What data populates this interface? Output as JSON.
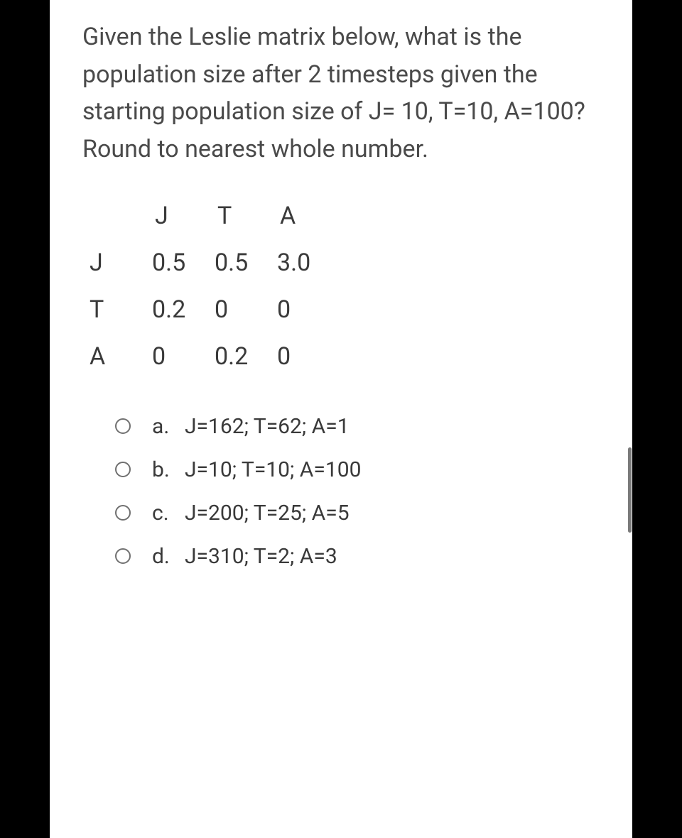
{
  "question": {
    "text": "Given the Leslie matrix below, what is the population size after 2 timesteps given the starting population size of J= 10, T=10, A=100? Round to nearest whole number."
  },
  "matrix": {
    "col_labels": [
      "J",
      "T",
      "A"
    ],
    "rows": [
      {
        "label": "J",
        "cells": [
          "0.5",
          "0.5",
          "3.0"
        ]
      },
      {
        "label": "T",
        "cells": [
          "0.2",
          "0",
          "0"
        ]
      },
      {
        "label": "A",
        "cells": [
          "0",
          "0.2",
          "0"
        ]
      }
    ]
  },
  "choices": [
    {
      "letter": "a.",
      "text": "J=162; T=62; A=1"
    },
    {
      "letter": "b.",
      "text": "J=10; T=10; A=100"
    },
    {
      "letter": "c.",
      "text": "J=200; T=25; A=5"
    },
    {
      "letter": "d.",
      "text": "J=310; T=2; A=3"
    }
  ],
  "colors": {
    "page_bg": "#ffffff",
    "outer_bg": "#000000",
    "text_color": "#4a4a4a",
    "radio_border": "#707070",
    "scroll_thumb": "#7a7a7a"
  },
  "typography": {
    "question_fontsize": 34,
    "matrix_fontsize": 34,
    "choice_fontsize": 30,
    "font_family": "system-ui"
  }
}
